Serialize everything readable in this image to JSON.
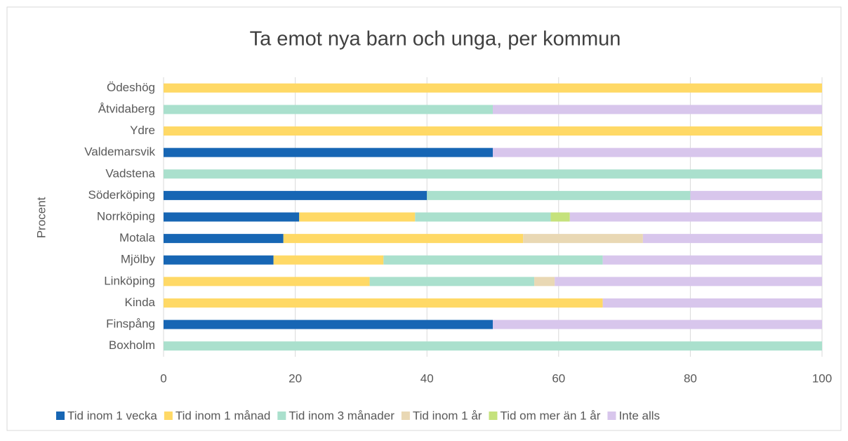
{
  "chart_data": {
    "type": "stacked_barh",
    "title": "Ta emot nya barn och unga, per kommun",
    "y_label": "Procent",
    "categories": [
      "Boxholm",
      "Finspång",
      "Kinda",
      "Linköping",
      "Mjölby",
      "Motala",
      "Norrköping",
      "Söderköping",
      "Vadstena",
      "Valdemarsvik",
      "Ydre",
      "Åtvidaberg",
      "Ödeshög"
    ],
    "series": [
      {
        "name": "Tid inom 1 vecka",
        "color": "#1766b4",
        "values": [
          0,
          50,
          0,
          0,
          16.7,
          18.2,
          20.6,
          40,
          0,
          50,
          0,
          0,
          0
        ]
      },
      {
        "name": "Tid inom 1 månad",
        "color": "#ffd966",
        "values": [
          0,
          0,
          66.7,
          31.3,
          16.7,
          36.4,
          17.6,
          0,
          0,
          0,
          100,
          0,
          100
        ]
      },
      {
        "name": "Tid inom 3 månader",
        "color": "#aae0cd",
        "values": [
          100,
          0,
          0,
          25,
          33.3,
          0,
          20.6,
          40,
          100,
          0,
          0,
          50,
          0
        ]
      },
      {
        "name": "Tid inom 1 år",
        "color": "#e9d8b4",
        "values": [
          0,
          0,
          0,
          3.1,
          0,
          18.2,
          0,
          0,
          0,
          0,
          0,
          0,
          0
        ]
      },
      {
        "name": "Tid om mer än 1 år",
        "color": "#c5e27c",
        "values": [
          0,
          0,
          0,
          0,
          0,
          0,
          2.9,
          0,
          0,
          0,
          0,
          0,
          0
        ]
      },
      {
        "name": "Inte alls",
        "color": "#d8c6ec",
        "values": [
          0,
          50,
          33.3,
          40.6,
          33.3,
          27.3,
          38.3,
          20,
          0,
          50,
          0,
          50,
          0
        ]
      }
    ],
    "xlim": [
      0,
      100
    ],
    "xticks": [
      0,
      20,
      40,
      60,
      80,
      100
    ],
    "grid": true,
    "legend": "bottom"
  }
}
